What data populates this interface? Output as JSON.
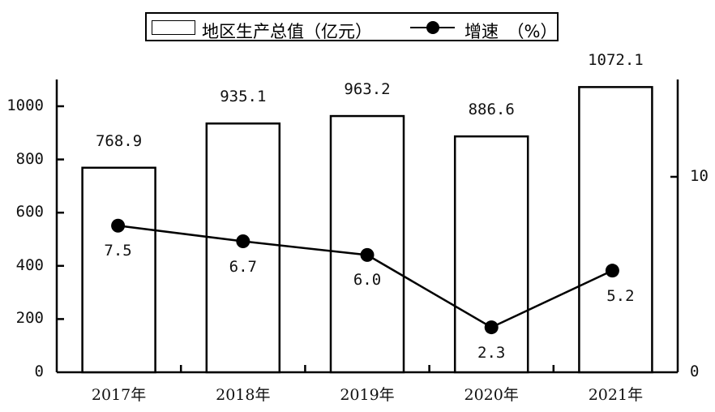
{
  "legend": {
    "bar_label": "地区生产总值（亿元）",
    "line_label": "增速　（%）"
  },
  "axes": {
    "left_ticks": [
      "0",
      "200",
      "400",
      "600",
      "800",
      "1000"
    ],
    "right_ticks": [
      "0",
      "10"
    ],
    "categories": [
      "2017年",
      "2018年",
      "2019年",
      "2020年",
      "2021年"
    ]
  },
  "bar_labels": [
    "768.9",
    "935.1",
    "963.2",
    "886.6",
    "1072.1"
  ],
  "line_labels": [
    "7.5",
    "6.7",
    "6.0",
    "2.3",
    "5.2"
  ],
  "chart_data": {
    "type": "bar",
    "title": "",
    "categories": [
      "2017年",
      "2018年",
      "2019年",
      "2020年",
      "2021年"
    ],
    "series": [
      {
        "name": "地区生产总值（亿元）",
        "type": "bar",
        "axis": "left",
        "values": [
          768.9,
          935.1,
          963.2,
          886.6,
          1072.1
        ]
      },
      {
        "name": "增速（%）",
        "type": "line",
        "axis": "right",
        "values": [
          7.5,
          6.7,
          6.0,
          2.3,
          5.2
        ]
      }
    ],
    "xlabel": "",
    "ylabel": "",
    "ylim": [
      0,
      1100
    ],
    "y2lim": [
      0,
      15
    ],
    "left_ticks": [
      0,
      200,
      400,
      600,
      800,
      1000
    ],
    "right_ticks": [
      0,
      10
    ],
    "grid": false,
    "legend_position": "top"
  },
  "colors": {
    "bar_fill": "#ffffff",
    "bar_stroke": "#000000",
    "line": "#000000"
  }
}
